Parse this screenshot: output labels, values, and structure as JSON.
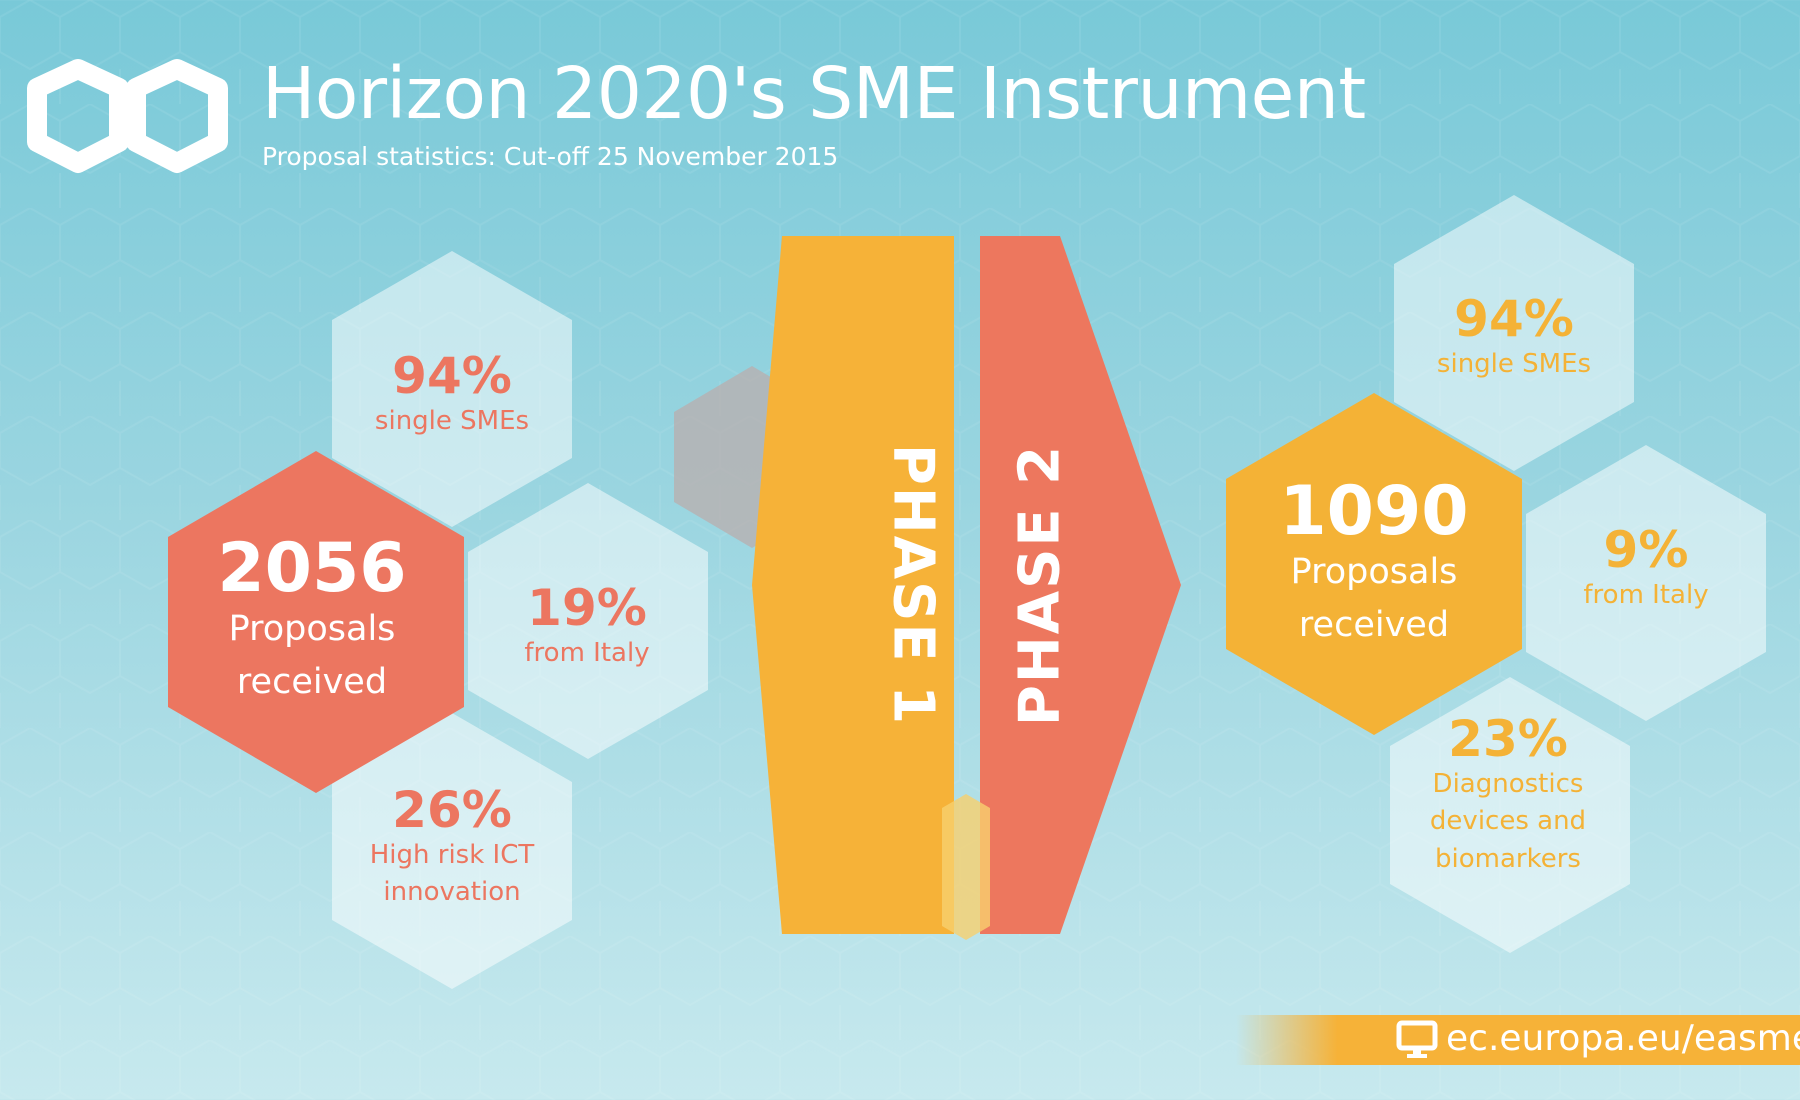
{
  "header": {
    "title": "Horizon 2020's SME Instrument",
    "subtitle": "Proposal statistics: Cut-off 25 November 2015"
  },
  "phase1": {
    "label": "PHASE 1",
    "total": "2056",
    "total_caption_1": "Proposals",
    "total_caption_2": "received",
    "stats": [
      {
        "value": "94%",
        "lines": [
          "single SMEs"
        ]
      },
      {
        "value": "19%",
        "lines": [
          "from Italy"
        ]
      },
      {
        "value": "26%",
        "lines": [
          "High risk ICT",
          "innovation"
        ]
      }
    ]
  },
  "phase2": {
    "label": "PHASE 2",
    "total": "1090",
    "total_caption_1": "Proposals",
    "total_caption_2": "received",
    "stats": [
      {
        "value": "94%",
        "lines": [
          "single SMEs"
        ]
      },
      {
        "value": "9%",
        "lines": [
          "from Italy"
        ]
      },
      {
        "value": "23%",
        "lines": [
          "Diagnostics",
          "devices and",
          "biomarkers"
        ]
      }
    ]
  },
  "footer": {
    "url": "ec.europa.eu/easme/",
    "icon": "monitor-icon"
  },
  "colors": {
    "accent_red": "#ec7660",
    "accent_orange": "#f4b236",
    "background": "#8ccfdc"
  }
}
